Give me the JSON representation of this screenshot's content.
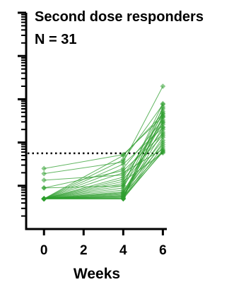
{
  "chart_data": {
    "type": "line",
    "title": "Second dose responders",
    "subtitle": "N = 31",
    "xlabel": "Weeks",
    "ylabel": "",
    "x_ticks": [
      0,
      2,
      4,
      6
    ],
    "xlim": [
      -0.9,
      6.2
    ],
    "y_scale": "log",
    "ylim_log10": [
      0,
      5
    ],
    "y_major_ticks_log10": [
      1,
      2,
      3,
      4,
      5
    ],
    "threshold_log10": 1.75,
    "threshold_style": "dotted",
    "grid": false,
    "series_color": "#2e9e2e",
    "marker": "diamond",
    "x": [
      0,
      4,
      6
    ],
    "y_log10_by_subject": [
      [
        0.7,
        0.7,
        1.9
      ],
      [
        0.7,
        0.72,
        2.0
      ],
      [
        0.7,
        0.74,
        1.78
      ],
      [
        0.7,
        0.76,
        2.12
      ],
      [
        0.7,
        0.78,
        2.24
      ],
      [
        0.7,
        0.8,
        1.82
      ],
      [
        0.7,
        0.82,
        2.36
      ],
      [
        0.7,
        0.84,
        2.48
      ],
      [
        0.7,
        0.7,
        2.58
      ],
      [
        0.7,
        0.86,
        1.95
      ],
      [
        0.7,
        0.9,
        2.05
      ],
      [
        0.7,
        0.95,
        2.68
      ],
      [
        0.7,
        1.0,
        2.3
      ],
      [
        0.7,
        1.05,
        2.78
      ],
      [
        0.7,
        0.7,
        2.82
      ],
      [
        0.7,
        1.1,
        1.76
      ],
      [
        0.7,
        1.15,
        2.16
      ],
      [
        0.7,
        1.2,
        2.42
      ],
      [
        0.7,
        0.7,
        2.62
      ],
      [
        0.7,
        0.75,
        2.72
      ],
      [
        0.7,
        1.3,
        1.85
      ],
      [
        0.7,
        1.4,
        2.52
      ],
      [
        0.7,
        0.7,
        1.8
      ],
      [
        0.7,
        1.5,
        2.34
      ],
      [
        0.7,
        1.6,
        2.88
      ],
      [
        0.7,
        1.7,
        2.66
      ],
      [
        0.95,
        1.0,
        2.9
      ],
      [
        0.95,
        1.35,
        2.2
      ],
      [
        1.13,
        1.25,
        2.46
      ],
      [
        1.28,
        1.55,
        3.3
      ],
      [
        1.4,
        1.72,
        2.6
      ]
    ]
  }
}
